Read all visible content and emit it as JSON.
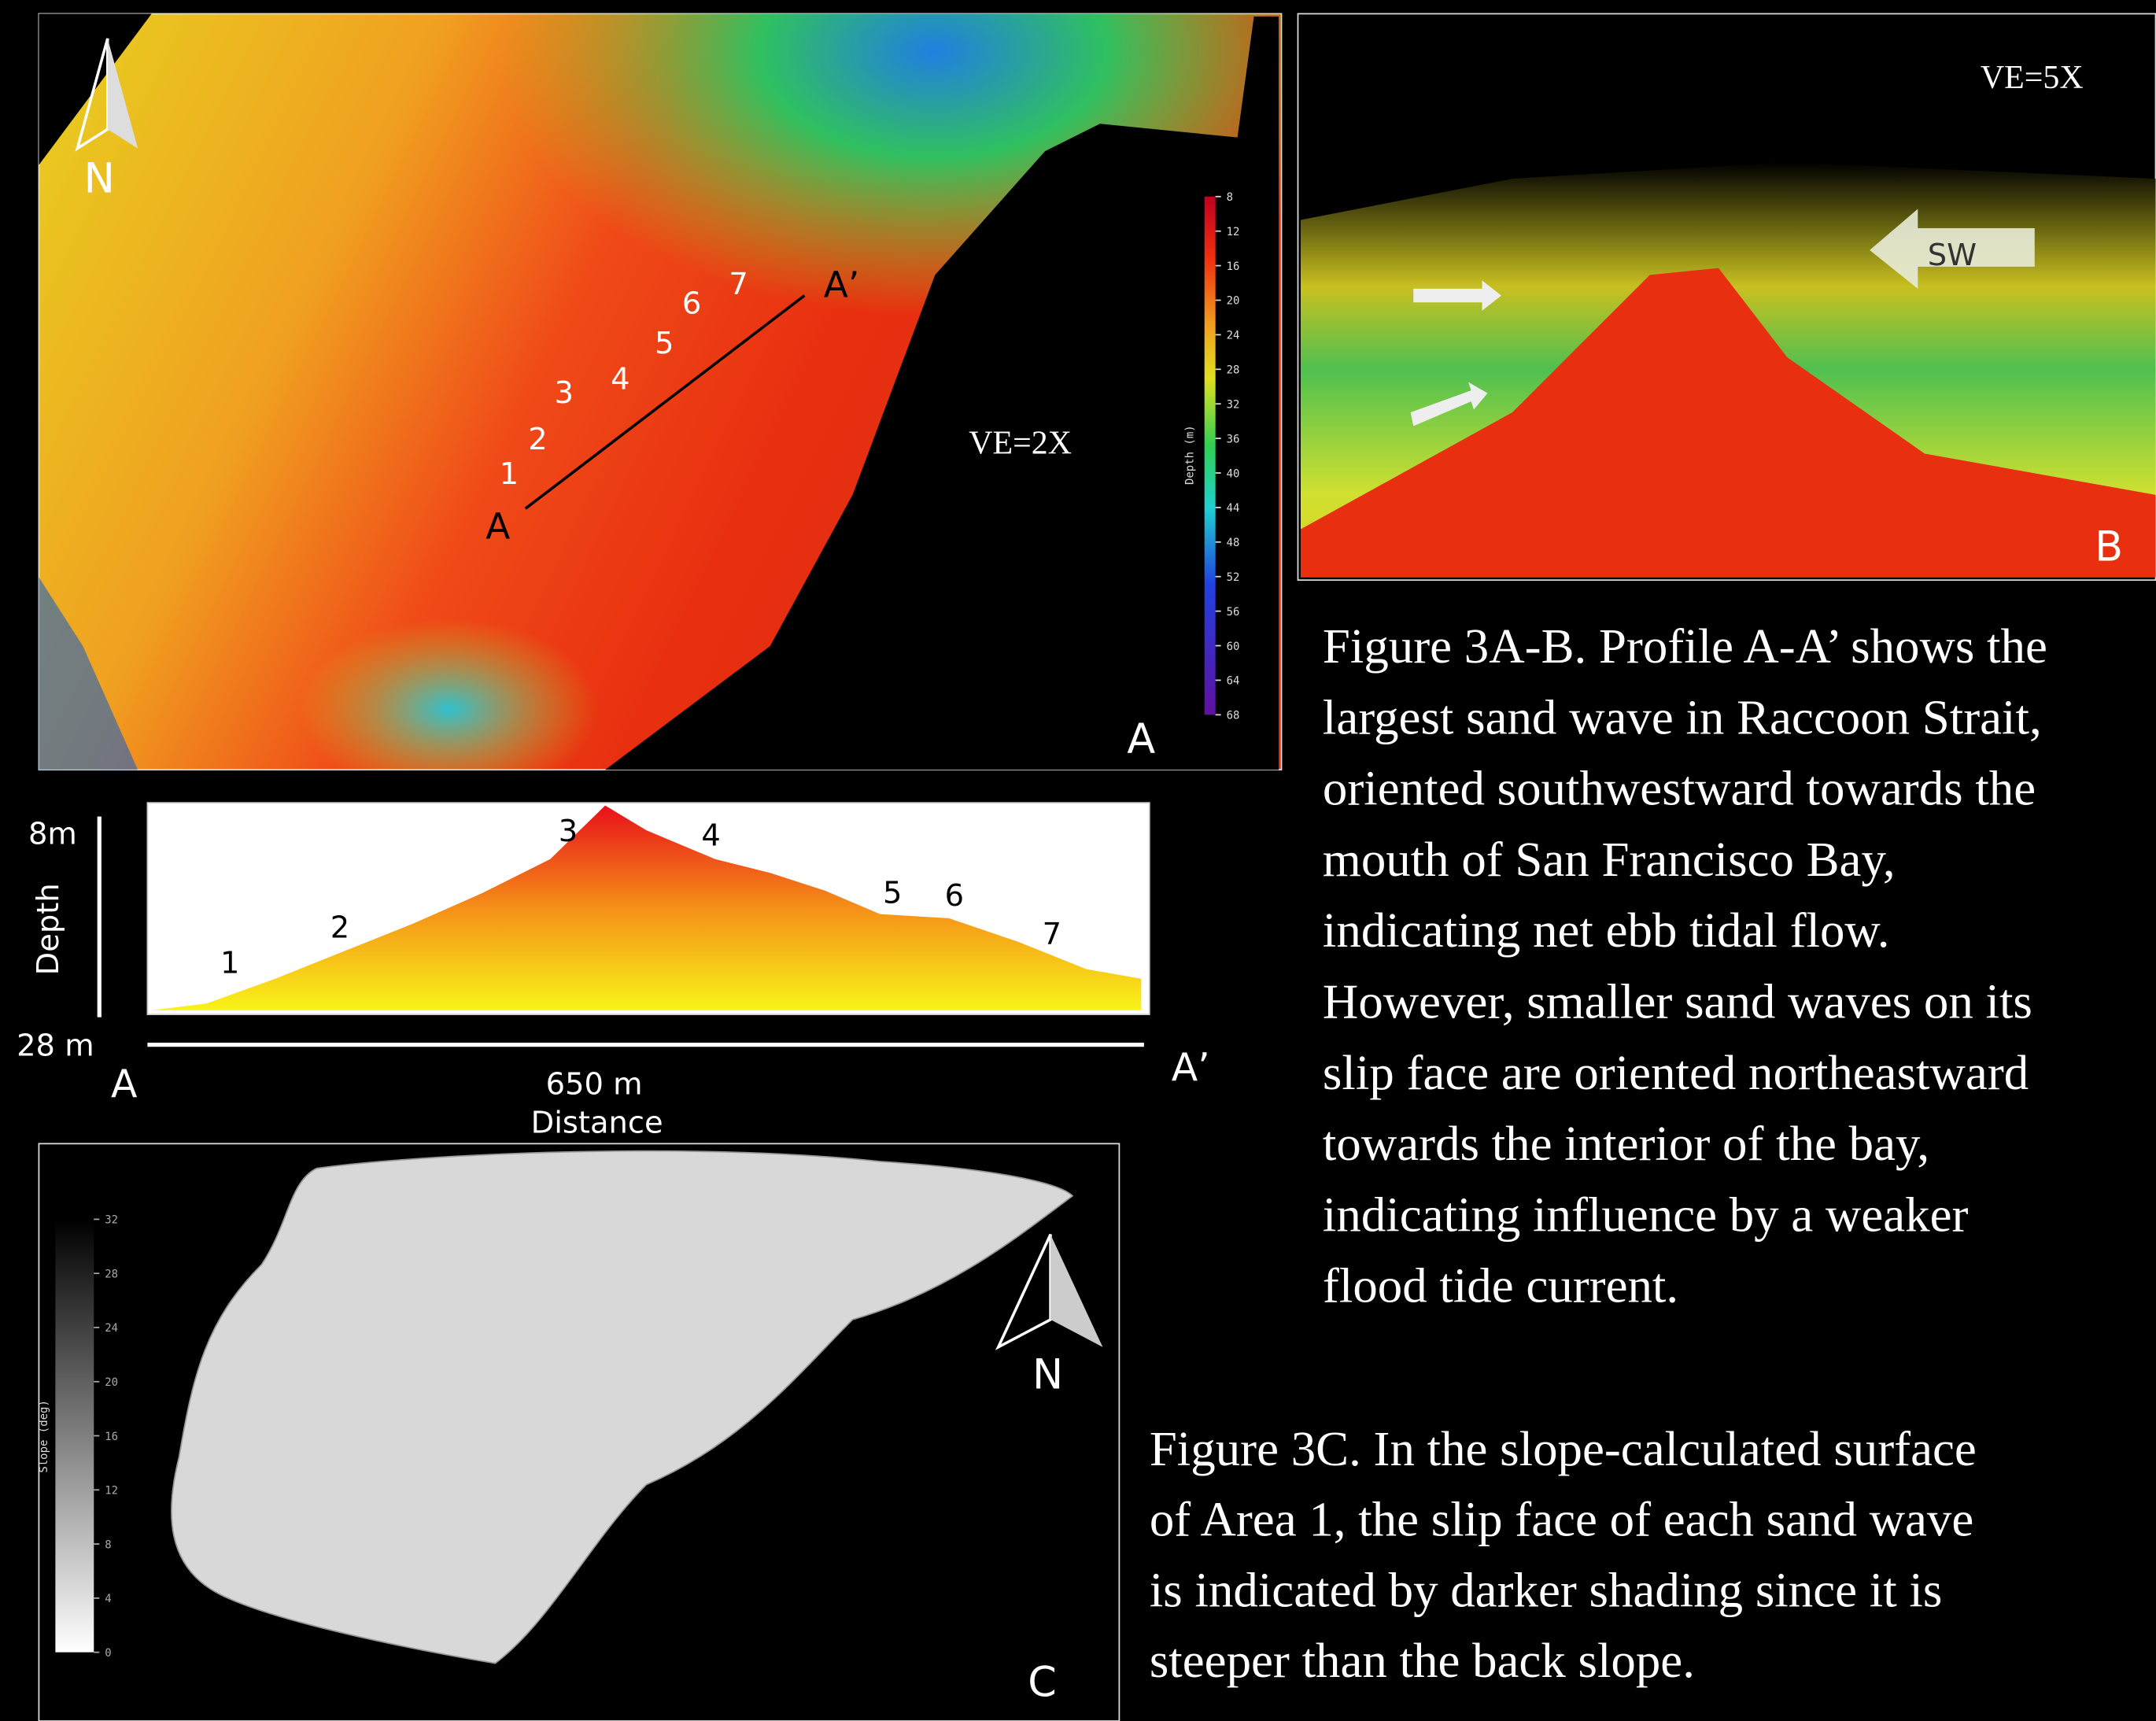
{
  "panel_a": {
    "label": "A",
    "north": "N",
    "ve": "VE=2X",
    "profile_start": "A",
    "profile_end": "A’",
    "waves": [
      "1",
      "2",
      "3",
      "4",
      "5",
      "6",
      "7"
    ],
    "colorbar": {
      "title": "Depth (m)",
      "ticks": [
        8,
        12,
        16,
        20,
        24,
        28,
        32,
        36,
        40,
        44,
        48,
        52,
        56,
        60,
        64,
        68
      ]
    }
  },
  "panel_b": {
    "label": "B",
    "ve": "VE=5X",
    "arrow": "SW"
  },
  "profile": {
    "top_depth": "8m",
    "bottom_depth": "28 m",
    "y_title": "Depth",
    "start": "A",
    "end": "A’",
    "length": "650 m",
    "x_title": "Distance",
    "waves": [
      "1",
      "2",
      "3",
      "4",
      "5",
      "6",
      "7"
    ]
  },
  "panel_c": {
    "label": "C",
    "north": "N",
    "colorbar": {
      "title": "Slope (deg)",
      "ticks": [
        0,
        4,
        8,
        12,
        16,
        20,
        24,
        28,
        32
      ]
    }
  },
  "caption_ab": [
    "Figure 3A-B. Profile A-A’ shows the",
    "largest sand wave in Raccoon Strait,",
    "oriented southwestward towards the",
    "mouth of San Francisco Bay,",
    "indicating net ebb tidal flow.",
    "However, smaller sand waves on its",
    "slip face are oriented northeastward",
    "towards the interior of the bay,",
    "indicating influence by a weaker",
    "flood tide current."
  ],
  "caption_c": [
    "Figure 3C.  In the slope-calculated surface",
    "of Area 1, the slip face of each sand wave",
    "is indicated by darker shading since it is",
    "steeper than the back slope."
  ]
}
